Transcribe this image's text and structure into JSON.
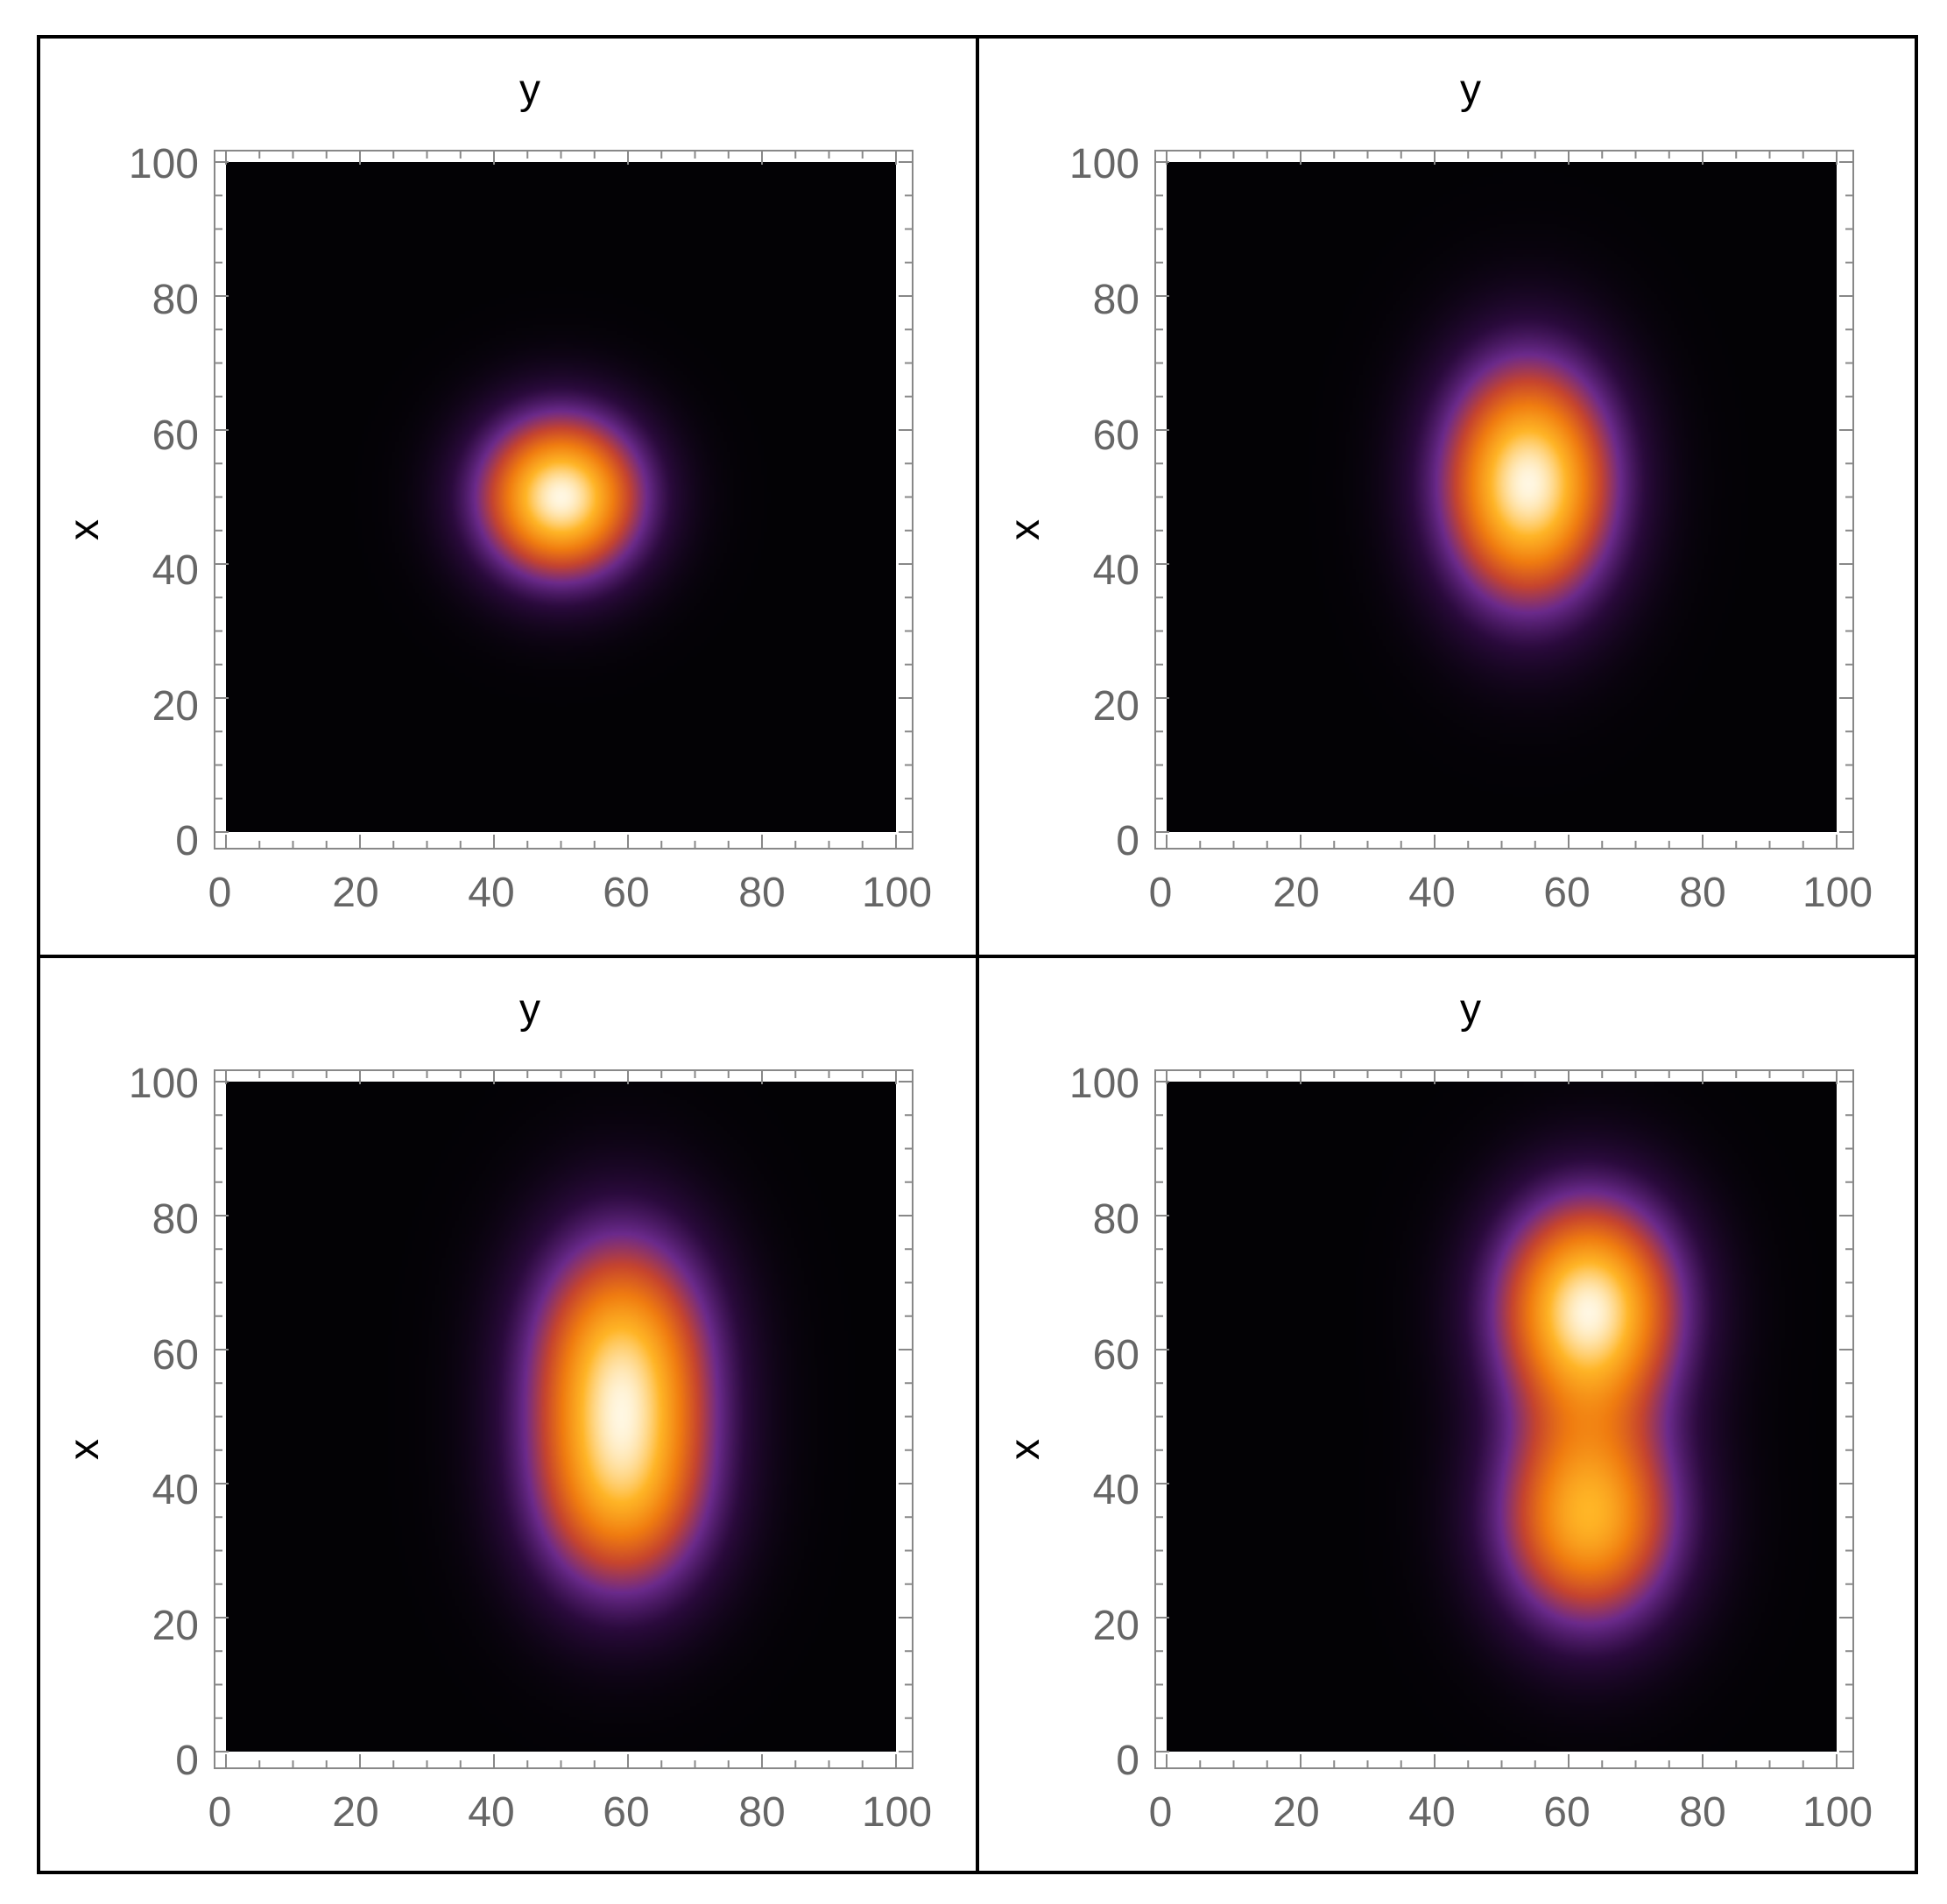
{
  "chart_data": [
    {
      "type": "heatmap",
      "xlabel": "y",
      "ylabel": "x",
      "xlim": [
        0,
        100
      ],
      "ylim": [
        0,
        100
      ],
      "x_ticks": [
        "0",
        "20",
        "40",
        "60",
        "80",
        "100"
      ],
      "y_ticks": [
        "0",
        "20",
        "40",
        "60",
        "80",
        "100"
      ],
      "colormap": [
        "#030205",
        "#2a0a3c",
        "#6b2a8c",
        "#c6442e",
        "#f07c10",
        "#ffb526",
        "#fff7e2"
      ],
      "peaks": [
        {
          "y": 50,
          "x": 50,
          "sigma_y": 8,
          "sigma_x": 8,
          "weight": 1.0
        }
      ]
    },
    {
      "type": "heatmap",
      "xlabel": "y",
      "ylabel": "x",
      "xlim": [
        0,
        100
      ],
      "ylim": [
        0,
        100
      ],
      "x_ticks": [
        "0",
        "20",
        "40",
        "60",
        "80",
        "100"
      ],
      "y_ticks": [
        "0",
        "20",
        "40",
        "60",
        "80",
        "100"
      ],
      "colormap": [
        "#030205",
        "#2a0a3c",
        "#6b2a8c",
        "#c6442e",
        "#f07c10",
        "#ffb526",
        "#fff7e2"
      ],
      "peaks": [
        {
          "y": 54,
          "x": 52,
          "sigma_y": 8.5,
          "sigma_x": 12,
          "weight": 1.0
        }
      ]
    },
    {
      "type": "heatmap",
      "xlabel": "y",
      "ylabel": "x",
      "xlim": [
        0,
        100
      ],
      "ylim": [
        0,
        100
      ],
      "x_ticks": [
        "0",
        "20",
        "40",
        "60",
        "80",
        "100"
      ],
      "y_ticks": [
        "0",
        "20",
        "40",
        "60",
        "80",
        "100"
      ],
      "colormap": [
        "#030205",
        "#2a0a3c",
        "#6b2a8c",
        "#c6442e",
        "#f07c10",
        "#ffb526",
        "#fff7e2"
      ],
      "peaks": [
        {
          "y": 59,
          "x": 58,
          "sigma_y": 9,
          "sigma_x": 13,
          "weight": 1.0
        },
        {
          "y": 59,
          "x": 38,
          "sigma_y": 9,
          "sigma_x": 11,
          "weight": 0.7
        }
      ]
    },
    {
      "type": "heatmap",
      "xlabel": "y",
      "ylabel": "x",
      "xlim": [
        0,
        100
      ],
      "ylim": [
        0,
        100
      ],
      "x_ticks": [
        "0",
        "20",
        "40",
        "60",
        "80",
        "100"
      ],
      "y_ticks": [
        "0",
        "20",
        "40",
        "60",
        "80",
        "100"
      ],
      "colormap": [
        "#030205",
        "#2a0a3c",
        "#6b2a8c",
        "#c6442e",
        "#f07c10",
        "#ffb526",
        "#fff7e2"
      ],
      "peaks": [
        {
          "y": 63,
          "x": 66,
          "sigma_y": 9,
          "sigma_x": 11,
          "weight": 1.0
        },
        {
          "y": 63,
          "x": 35,
          "sigma_y": 9,
          "sigma_x": 11,
          "weight": 0.8
        }
      ]
    }
  ]
}
